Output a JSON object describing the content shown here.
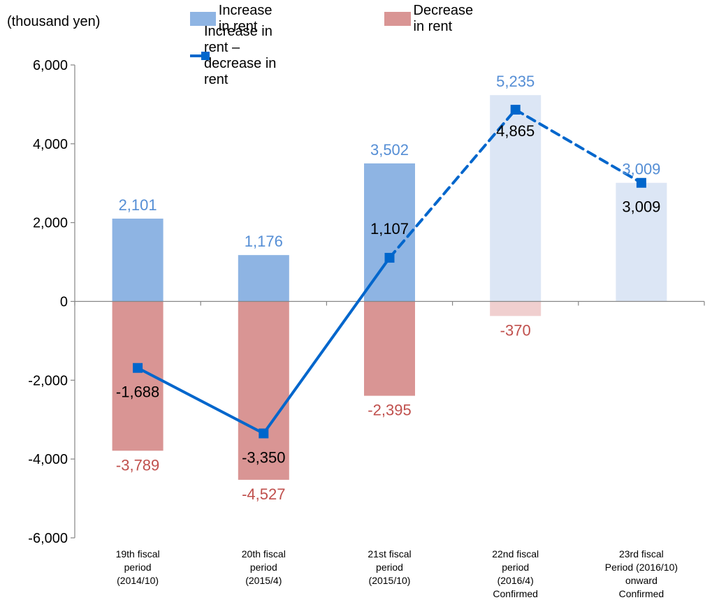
{
  "unit_label": "(thousand yen)",
  "colors": {
    "increase": "#8eb4e3",
    "increase_light": "#dce6f5",
    "decrease": "#d99594",
    "decrease_light": "#f0cfcf",
    "net": "#0066cc",
    "increase_text": "#558ed5",
    "decrease_text": "#c0504d",
    "axis": "#868686"
  },
  "chart_data": {
    "type": "bar",
    "categories": [
      [
        "19th fiscal",
        "period",
        "(2014/10)"
      ],
      [
        "20th fiscal",
        "period",
        "(2015/4)"
      ],
      [
        "21st fiscal",
        "period",
        "(2015/10)"
      ],
      [
        "22nd fiscal",
        "period",
        "(2016/4)",
        "Confirmed"
      ],
      [
        "23rd fiscal",
        "Period (2016/10)",
        "onward",
        "Confirmed"
      ]
    ],
    "series": [
      {
        "name": "Increase in rent",
        "kind": "bar",
        "values": [
          2101,
          1176,
          3502,
          5235,
          3009
        ],
        "labels": [
          "2,101",
          "1,176",
          "3,502",
          "5,235",
          "3,009"
        ]
      },
      {
        "name": "Decrease in rent",
        "kind": "bar",
        "values": [
          -3789,
          -4527,
          -2395,
          -370,
          null
        ],
        "labels": [
          "-3,789",
          "-4,527",
          "-2,395",
          "-370",
          ""
        ]
      },
      {
        "name": "Increase in rent – decrease in rent",
        "kind": "line",
        "values": [
          -1688,
          -3350,
          1107,
          4865,
          3009
        ],
        "labels": [
          "-1,688",
          "-3,350",
          "1,107",
          "4,865",
          "3,009"
        ]
      }
    ],
    "projected_from_index": 3,
    "ylim": [
      -6000,
      6000
    ],
    "yticks": [
      6000,
      4000,
      2000,
      0,
      -2000,
      -4000,
      -6000
    ],
    "ytick_labels": [
      "6,000",
      "4,000",
      "2,000",
      "0",
      "-2,000",
      "-4,000",
      "-6,000"
    ],
    "legend_position": "top"
  }
}
